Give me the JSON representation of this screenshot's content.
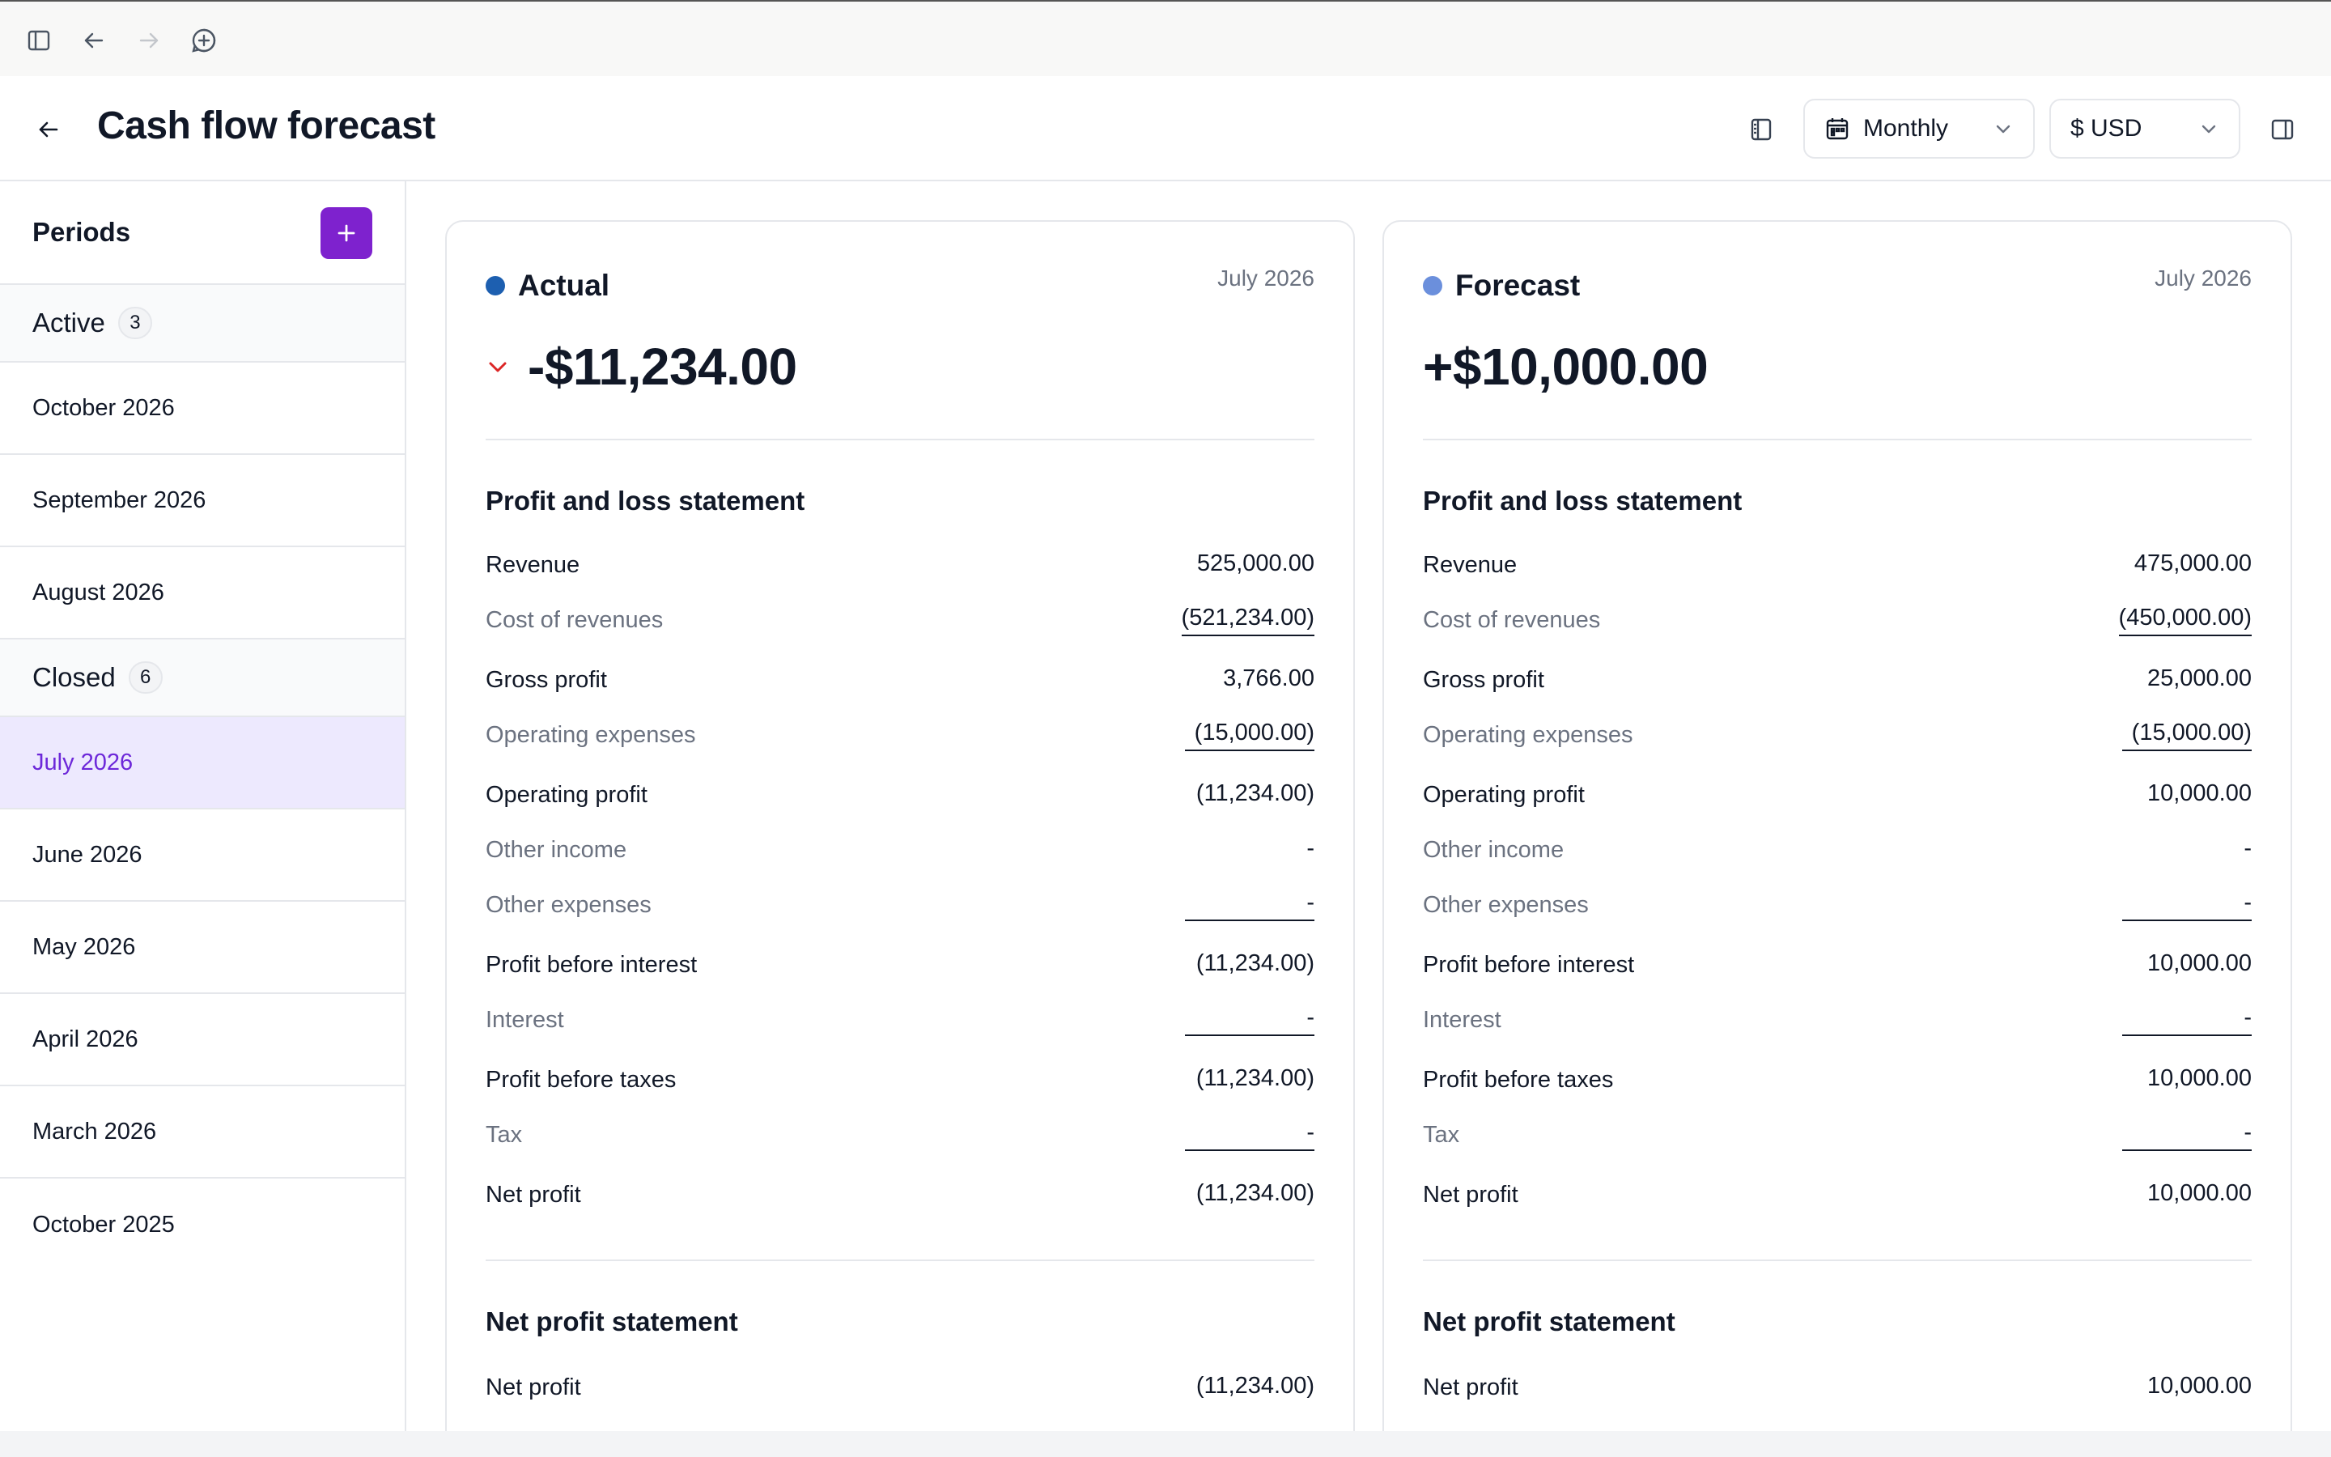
{
  "page": {
    "title": "Cash flow forecast"
  },
  "toolbar": {
    "frequency": "Monthly",
    "currency": "$ USD"
  },
  "sidebar": {
    "title": "Periods",
    "active": {
      "label": "Active",
      "count": "3",
      "items": [
        "October 2026",
        "September 2026",
        "August 2026"
      ]
    },
    "closed": {
      "label": "Closed",
      "count": "6",
      "items": [
        "July 2026",
        "June 2026",
        "May 2026",
        "April 2026",
        "March 2026",
        "October 2025"
      ]
    },
    "selected": "July 2026"
  },
  "colors": {
    "accent": "#7e22ce",
    "actual_dot": "#1d5fb0",
    "forecast_dot": "#6b8fdc",
    "negative_trend": "#dc2626"
  },
  "cards": {
    "actual": {
      "label": "Actual",
      "date": "July 2026",
      "total": "-$11,234.00",
      "trend_icon": "chevron-down-icon",
      "pl_title": "Profit and loss statement",
      "pl_rows": [
        {
          "label": "Revenue",
          "value": "525,000.00"
        },
        {
          "label": "Cost of revenues",
          "value": "(521,234.00)"
        },
        {
          "label": "Gross profit",
          "value": "3,766.00"
        },
        {
          "label": "Operating expenses",
          "value": "(15,000.00)"
        },
        {
          "label": "Operating profit",
          "value": "(11,234.00)"
        },
        {
          "label": "Other income",
          "value": "-"
        },
        {
          "label": "Other expenses",
          "value": "-"
        },
        {
          "label": "Profit before interest",
          "value": "(11,234.00)"
        },
        {
          "label": "Interest",
          "value": "-"
        },
        {
          "label": "Profit before taxes",
          "value": "(11,234.00)"
        },
        {
          "label": "Tax",
          "value": "-"
        },
        {
          "label": "Net profit",
          "value": "(11,234.00)"
        }
      ],
      "np_title": "Net profit statement",
      "np_rows": [
        {
          "label": "Net profit",
          "value": "(11,234.00)"
        }
      ]
    },
    "forecast": {
      "label": "Forecast",
      "date": "July 2026",
      "total": "+$10,000.00",
      "pl_title": "Profit and loss statement",
      "pl_rows": [
        {
          "label": "Revenue",
          "value": "475,000.00"
        },
        {
          "label": "Cost of revenues",
          "value": "(450,000.00)"
        },
        {
          "label": "Gross profit",
          "value": "25,000.00"
        },
        {
          "label": "Operating expenses",
          "value": "(15,000.00)"
        },
        {
          "label": "Operating profit",
          "value": "10,000.00"
        },
        {
          "label": "Other income",
          "value": "-"
        },
        {
          "label": "Other expenses",
          "value": "-"
        },
        {
          "label": "Profit before interest",
          "value": "10,000.00"
        },
        {
          "label": "Interest",
          "value": "-"
        },
        {
          "label": "Profit before taxes",
          "value": "10,000.00"
        },
        {
          "label": "Tax",
          "value": "-"
        },
        {
          "label": "Net profit",
          "value": "10,000.00"
        }
      ],
      "np_title": "Net profit statement",
      "np_rows": [
        {
          "label": "Net profit",
          "value": "10,000.00"
        }
      ]
    }
  }
}
